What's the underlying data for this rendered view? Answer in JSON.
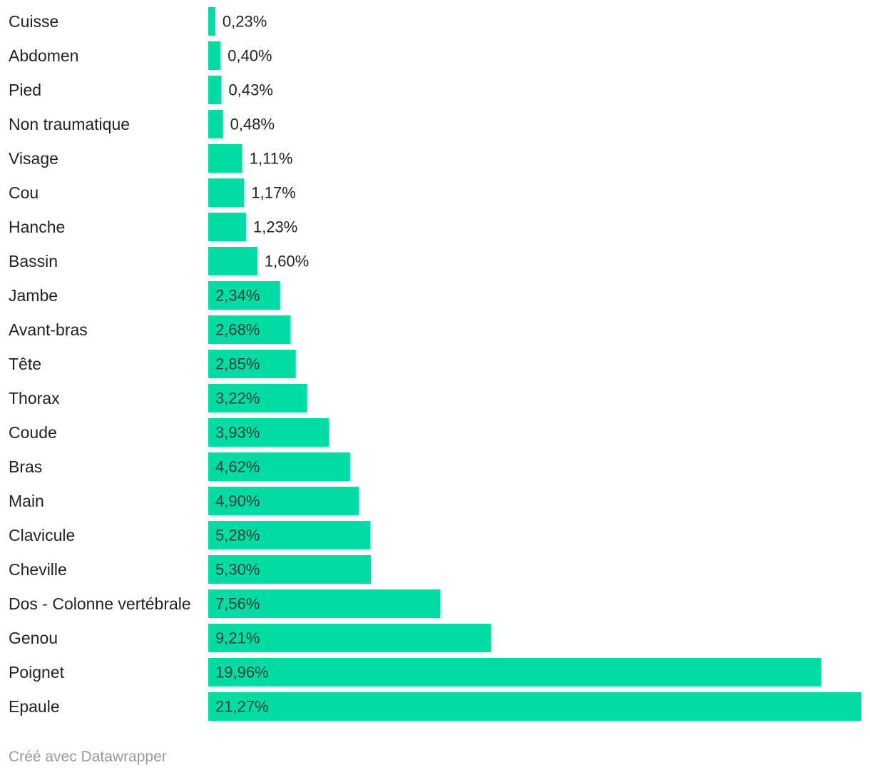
{
  "chart_data": {
    "type": "bar",
    "orientation": "horizontal",
    "categories": [
      "Cuisse",
      "Abdomen",
      "Pied",
      "Non traumatique",
      "Visage",
      "Cou",
      "Hanche",
      "Bassin",
      "Jambe",
      "Avant-bras",
      "Tête",
      "Thorax",
      "Coude",
      "Bras",
      "Main",
      "Clavicule",
      "Cheville",
      "Dos - Colonne vertébrale",
      "Genou",
      "Poignet",
      "Epaule"
    ],
    "values": [
      0.23,
      0.4,
      0.43,
      0.48,
      1.11,
      1.17,
      1.23,
      1.6,
      2.34,
      2.68,
      2.85,
      3.22,
      3.93,
      4.62,
      4.9,
      5.28,
      5.3,
      7.56,
      9.21,
      19.96,
      21.27
    ],
    "value_labels": [
      "0,23%",
      "0,40%",
      "0,43%",
      "0,48%",
      "1,11%",
      "1,17%",
      "1,23%",
      "1,60%",
      "2,34%",
      "2,68%",
      "2,85%",
      "3,22%",
      "3,93%",
      "4,62%",
      "4,90%",
      "5,28%",
      "5,30%",
      "7,56%",
      "9,21%",
      "19,96%",
      "21,27%"
    ],
    "xlim": [
      0,
      21.27
    ],
    "grid": false,
    "bar_color": "#00dca4",
    "label_color": "#222222"
  },
  "footer": {
    "credit": "Créé avec Datawrapper"
  }
}
